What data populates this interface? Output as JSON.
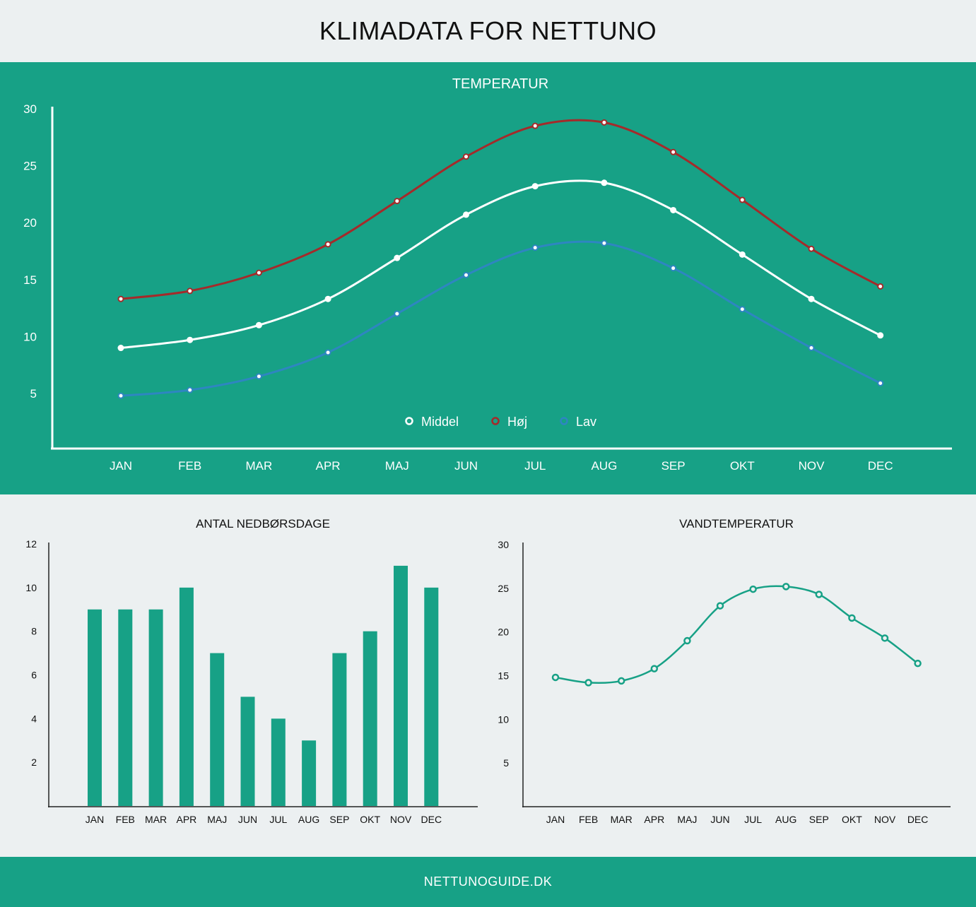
{
  "page": {
    "title": "KLIMADATA FOR NETTUNO",
    "footer": "NETTUNOGUIDE.DK"
  },
  "colors": {
    "panel": "#17a186",
    "background": "#ecf0f1",
    "middel": "#ffffff",
    "hoj": "#a52a2a",
    "lav": "#2e86c1",
    "bar": "#17a186",
    "water": "#17a186"
  },
  "chart_data": [
    {
      "type": "line",
      "title": "TEMPERATUR",
      "categories": [
        "JAN",
        "FEB",
        "MAR",
        "APR",
        "MAJ",
        "JUN",
        "JUL",
        "AUG",
        "SEP",
        "OKT",
        "NOV",
        "DEC"
      ],
      "series": [
        {
          "name": "Middel",
          "values": [
            9.0,
            9.7,
            11.0,
            13.3,
            16.9,
            20.7,
            23.2,
            23.5,
            21.1,
            17.2,
            13.3,
            10.1
          ]
        },
        {
          "name": "Høj",
          "values": [
            13.3,
            14.0,
            15.6,
            18.1,
            21.9,
            25.8,
            28.5,
            28.8,
            26.2,
            22.0,
            17.7,
            14.4
          ]
        },
        {
          "name": "Lav",
          "values": [
            4.8,
            5.3,
            6.5,
            8.6,
            12.0,
            15.4,
            17.8,
            18.2,
            16.0,
            12.4,
            9.0,
            5.9
          ]
        }
      ],
      "yticks": [
        5,
        10,
        15,
        20,
        25,
        30
      ],
      "ylim": [
        0,
        30
      ],
      "legend": "bottom-center",
      "grid": false
    },
    {
      "type": "bar",
      "title": "ANTAL NEDBØRSDAGE",
      "categories": [
        "JAN",
        "FEB",
        "MAR",
        "APR",
        "MAJ",
        "JUN",
        "JUL",
        "AUG",
        "SEP",
        "OKT",
        "NOV",
        "DEC"
      ],
      "values": [
        9,
        9,
        9,
        10,
        7,
        5,
        4,
        3,
        7,
        8,
        11,
        10
      ],
      "yticks": [
        2,
        4,
        6,
        8,
        10,
        12
      ],
      "ylim": [
        0,
        12
      ],
      "grid": false
    },
    {
      "type": "line",
      "title": "VANDTEMPERATUR",
      "categories": [
        "JAN",
        "FEB",
        "MAR",
        "APR",
        "MAJ",
        "JUN",
        "JUL",
        "AUG",
        "SEP",
        "OKT",
        "NOV",
        "DEC"
      ],
      "values": [
        14.8,
        14.2,
        14.4,
        15.8,
        19.0,
        23.0,
        24.9,
        25.2,
        24.3,
        21.6,
        19.3,
        16.4
      ],
      "yticks": [
        5,
        10,
        15,
        20,
        25,
        30
      ],
      "ylim": [
        0,
        30
      ],
      "grid": false
    }
  ]
}
